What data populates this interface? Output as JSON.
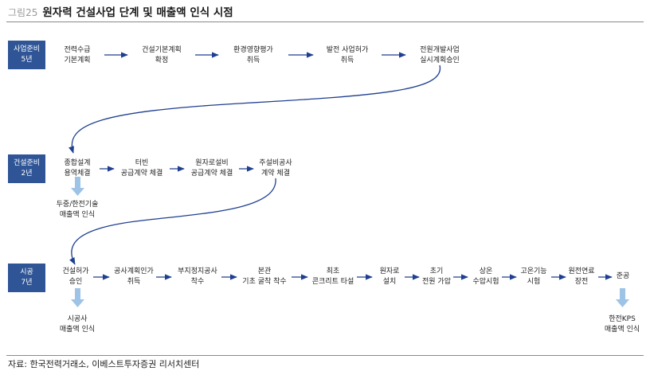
{
  "header": {
    "figure_number": "그림25",
    "title": "원자력 건설사업 단계 및 매출액 인식 시점"
  },
  "phases": [
    {
      "name": "사업준비",
      "duration": "5년"
    },
    {
      "name": "건설준비",
      "duration": "2년"
    },
    {
      "name": "시공",
      "duration": "7년"
    }
  ],
  "row1_steps": [
    [
      "전력수급",
      "기본계획"
    ],
    [
      "건설기본계획",
      "확정"
    ],
    [
      "환경영향평가",
      "취득"
    ],
    [
      "발전 사업허가",
      "취득"
    ],
    [
      "전원개발사업",
      "실시계획승인"
    ]
  ],
  "row2_steps": [
    [
      "종합설계",
      "용역체결"
    ],
    [
      "터빈",
      "공급계약 체결"
    ],
    [
      "원자로설비",
      "공급계약 체결"
    ],
    [
      "주설비공사",
      "계약 체결"
    ]
  ],
  "row2_note": [
    "두중/한전기술",
    "매출액 인식"
  ],
  "row3_steps": [
    [
      "건설허가",
      "승인"
    ],
    [
      "공사계획인가",
      "취득"
    ],
    [
      "부지정지공사",
      "착수"
    ],
    [
      "본관",
      "기초 굴착 착수"
    ],
    [
      "최초",
      "콘크리트 타설"
    ],
    [
      "원자로",
      "설치"
    ],
    [
      "초기",
      "전원 가압"
    ],
    [
      "상온",
      "수압시험"
    ],
    [
      "고온기능",
      "시험"
    ],
    [
      "원전연료",
      "장전"
    ],
    [
      "준공"
    ]
  ],
  "row3_note_left": [
    "시공사",
    "매출액 인식"
  ],
  "row3_note_right": [
    "한전KPS",
    "매출액 인식"
  ],
  "source": "자료: 한국전력거래소, 이베스트투자증권 리서치센터",
  "colors": {
    "phase_box": "#2f5597",
    "arrow": "#1f3f8f",
    "recognition_arrow": "#9dc3e6"
  }
}
